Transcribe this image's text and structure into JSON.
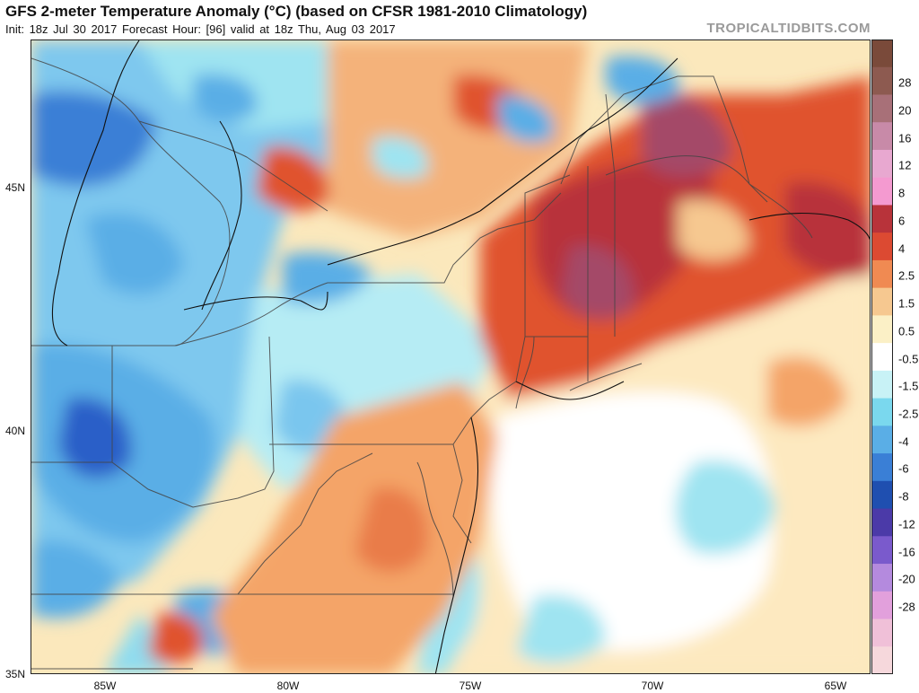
{
  "header": {
    "title": "GFS 2-meter Temperature Anomaly (°C) (based on CFSR 1981-2010 Climatology)",
    "subtitle": "Init: 18z Jul 30 2017   Forecast Hour: [96]   valid at 18z Thu, Aug 03 2017",
    "source": "TROPICALTIDBITS.COM"
  },
  "colorbar": {
    "labels": [
      "28",
      "20",
      "16",
      "12",
      "8",
      "6",
      "4",
      "2.5",
      "1.5",
      "0.5",
      "-0.5",
      "-1.5",
      "-2.5",
      "-4",
      "-6",
      "-8",
      "-12",
      "-16",
      "-20",
      "-28"
    ],
    "colors": [
      "#7a4a3a",
      "#8d5a50",
      "#a87078",
      "#c88aa8",
      "#e8a8d0",
      "#f49ad0",
      "#b8333a",
      "#dc4a32",
      "#f08a52",
      "#f6c890",
      "#fbf0c6",
      "#ffffff",
      "#c8f2f6",
      "#7ad8ee",
      "#5aaee6",
      "#3a7fd6",
      "#1f4fb0",
      "#4b3aa8",
      "#7a5acc",
      "#b48ade",
      "#e2a0dc",
      "#f0c0d8",
      "#f6d8dc"
    ]
  },
  "axes": {
    "lat_labels": [
      "45N",
      "40N",
      "35N"
    ],
    "lon_labels": [
      "85W",
      "80W",
      "75W",
      "70W",
      "65W"
    ]
  },
  "legend_colors": {
    "cold_deep": "#2a5fc8",
    "cold": "#5aaee6",
    "cool": "#8fdcef",
    "neutral": "#ffffff",
    "warm_light": "#fbe3b0",
    "warm": "#f4a468",
    "hot": "#e0522e",
    "very_hot": "#b8333a",
    "extreme": "#a44a68"
  }
}
